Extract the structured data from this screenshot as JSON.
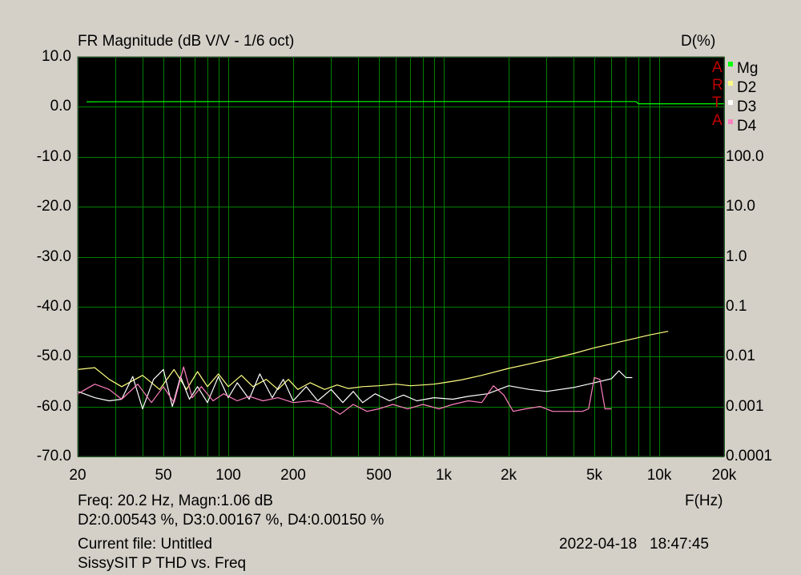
{
  "chart_data": {
    "type": "line",
    "title": "FR Magnitude (dB V/V - 1/6 oct)",
    "right_axis_title": "D(%)",
    "xlabel": "F(Hz)",
    "x_scale": "log",
    "xlim": [
      20,
      20000
    ],
    "ylim": [
      -70,
      10
    ],
    "y2_scale": "log",
    "y2lim": [
      0.0001,
      100
    ],
    "grid": true,
    "x_ticks": [
      "20",
      "50",
      "100",
      "200",
      "500",
      "1k",
      "2k",
      "5k",
      "10k",
      "20k"
    ],
    "y_ticks": [
      "10.0",
      "0.0",
      "-10.0",
      "-20.0",
      "-30.0",
      "-40.0",
      "-50.0",
      "-60.0",
      "-70.0"
    ],
    "y2_ticks": [
      "100.0",
      "10.0",
      "1.0",
      "0.1",
      "0.01",
      "0.001",
      "0.0001"
    ],
    "legend_position": "top-right",
    "watermark": [
      "A",
      "R",
      "T",
      "A"
    ],
    "series": [
      {
        "name": "Mg",
        "color": "#00ff00",
        "axis": "left",
        "x": [
          22,
          100,
          1000,
          7800,
          8000,
          20000
        ],
        "y": [
          1.0,
          1.06,
          1.06,
          1.06,
          0.6,
          0.6
        ]
      },
      {
        "name": "D2",
        "color": "#ffff80",
        "axis": "right",
        "x": [
          20,
          24,
          28,
          32,
          40,
          48,
          56,
          64,
          72,
          80,
          90,
          100,
          115,
          130,
          150,
          170,
          190,
          210,
          240,
          280,
          320,
          360,
          420,
          500,
          600,
          700,
          800,
          900,
          1000,
          1200,
          1500,
          2000,
          3000,
          4000,
          5000,
          7000,
          9000,
          11000
        ],
        "y": [
          0.0055,
          0.006,
          0.0035,
          0.0025,
          0.0042,
          0.0022,
          0.0055,
          0.0022,
          0.005,
          0.0025,
          0.0045,
          0.0025,
          0.0042,
          0.0025,
          0.0035,
          0.0022,
          0.0035,
          0.0022,
          0.003,
          0.0022,
          0.0027,
          0.0023,
          0.0025,
          0.0026,
          0.0028,
          0.0026,
          0.0027,
          0.0028,
          0.003,
          0.0034,
          0.0042,
          0.0058,
          0.0085,
          0.0115,
          0.015,
          0.021,
          0.027,
          0.032
        ]
      },
      {
        "name": "D3",
        "color": "#ffffff",
        "axis": "right",
        "x": [
          20,
          24,
          28,
          32,
          36,
          40,
          45,
          50,
          55,
          60,
          66,
          72,
          80,
          90,
          100,
          110,
          125,
          140,
          160,
          180,
          200,
          230,
          260,
          300,
          340,
          380,
          420,
          480,
          560,
          650,
          750,
          900,
          1100,
          1300,
          1600,
          2000,
          2500,
          3000,
          4000,
          5000,
          6000,
          6500,
          7000,
          7500
        ],
        "y": [
          0.002,
          0.0015,
          0.0013,
          0.0014,
          0.004,
          0.0009,
          0.0035,
          0.0055,
          0.001,
          0.004,
          0.0014,
          0.0025,
          0.0012,
          0.004,
          0.0015,
          0.003,
          0.0014,
          0.0045,
          0.0015,
          0.0035,
          0.0013,
          0.0025,
          0.0013,
          0.0022,
          0.0012,
          0.002,
          0.0012,
          0.0018,
          0.0013,
          0.0017,
          0.0013,
          0.0015,
          0.0014,
          0.0016,
          0.0018,
          0.0026,
          0.0022,
          0.002,
          0.0024,
          0.003,
          0.0036,
          0.0052,
          0.0038,
          0.0038
        ]
      },
      {
        "name": "D4",
        "color": "#ff80c0",
        "axis": "right",
        "x": [
          20,
          24,
          28,
          32,
          38,
          44,
          50,
          56,
          62,
          68,
          75,
          85,
          95,
          110,
          125,
          145,
          170,
          200,
          240,
          280,
          330,
          380,
          440,
          500,
          580,
          680,
          800,
          950,
          1100,
          1300,
          1500,
          1700,
          1900,
          2100,
          2400,
          2800,
          3200,
          3600,
          4000,
          4400,
          4700,
          5000,
          5300,
          5600,
          6000
        ],
        "y": [
          0.0018,
          0.0028,
          0.0022,
          0.0014,
          0.0028,
          0.0012,
          0.0025,
          0.0012,
          0.0062,
          0.0015,
          0.0025,
          0.0013,
          0.0018,
          0.0013,
          0.0016,
          0.0013,
          0.0015,
          0.0012,
          0.0013,
          0.0011,
          0.0007,
          0.0011,
          0.0008,
          0.0009,
          0.0011,
          0.0009,
          0.0011,
          0.0009,
          0.0011,
          0.0013,
          0.0012,
          0.0026,
          0.0017,
          0.0008,
          0.0009,
          0.001,
          0.0008,
          0.0008,
          0.0008,
          0.0008,
          0.0009,
          0.0038,
          0.0035,
          0.0009,
          0.0009
        ]
      }
    ]
  },
  "readout": {
    "line1_left": "Freq: 20.2 Hz, Magn:1.06 dB",
    "line2_left": "D2:0.00543 %, D3:0.00167 %, D4:0.00150 %",
    "current_file": "Current file: Untitled",
    "description": "SissySIT P THD vs. Freq",
    "timestamp": "2022-04-18   18:47:45"
  },
  "colors": {
    "background": "#d4d0c8",
    "plot_background": "#000000",
    "grid": "#008000",
    "watermark": "#c00000"
  }
}
